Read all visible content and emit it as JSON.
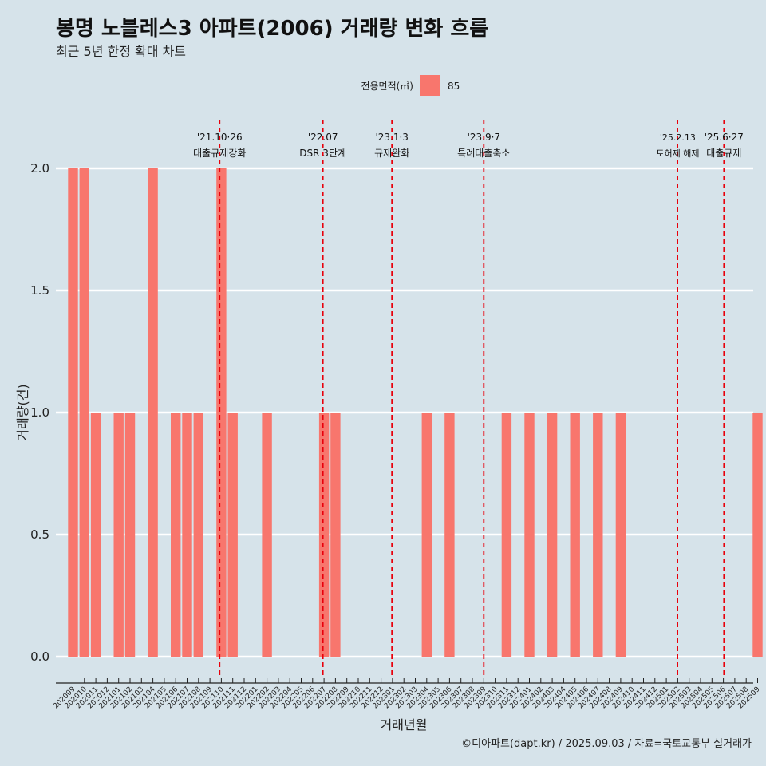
{
  "chart_data": {
    "type": "bar",
    "title": "봉명 노블레스3 아파트(2006) 거래량 변화 흐름",
    "subtitle": "최근 5년 한정 확대 차트",
    "legend_title": "전용면적(㎡)",
    "legend_items": [
      {
        "label": "85",
        "color": "#f8766d"
      }
    ],
    "xlabel": "거래년월",
    "ylabel": "거래량(건)",
    "ylim": [
      0,
      2
    ],
    "yticks": [
      {
        "value": 0,
        "label": "0.0"
      },
      {
        "value": 0.5,
        "label": "0.5"
      },
      {
        "value": 1,
        "label": "1.0"
      },
      {
        "value": 1.5,
        "label": "1.5"
      },
      {
        "value": 2,
        "label": "2.0"
      }
    ],
    "categories": [
      "202009",
      "202010",
      "202011",
      "202012",
      "202101",
      "202102",
      "202103",
      "202104",
      "202105",
      "202106",
      "202107",
      "202108",
      "202109",
      "202110",
      "202111",
      "202112",
      "202201",
      "202202",
      "202203",
      "202204",
      "202205",
      "202206",
      "202207",
      "202208",
      "202209",
      "202210",
      "202211",
      "202212",
      "202301",
      "202302",
      "202303",
      "202304",
      "202305",
      "202306",
      "202307",
      "202308",
      "202309",
      "202310",
      "202311",
      "202312",
      "202401",
      "202402",
      "202403",
      "202404",
      "202405",
      "202406",
      "202407",
      "202408",
      "202409",
      "202410",
      "202411",
      "202412",
      "202501",
      "202502",
      "202503",
      "202504",
      "202505",
      "202506",
      "202507",
      "202508",
      "202509"
    ],
    "series": [
      {
        "name": "85",
        "color": "#f8766d",
        "values": [
          2,
          2,
          1,
          0,
          1,
          1,
          0,
          2,
          0,
          1,
          1,
          1,
          0,
          2,
          1,
          0,
          0,
          1,
          0,
          0,
          0,
          0,
          1,
          1,
          0,
          0,
          0,
          0,
          0,
          0,
          0,
          1,
          0,
          1,
          0,
          0,
          0,
          0,
          1,
          0,
          1,
          0,
          1,
          0,
          1,
          0,
          1,
          0,
          1,
          0,
          0,
          0,
          0,
          0,
          0,
          0,
          0,
          0,
          0,
          0,
          1
        ]
      }
    ],
    "events": [
      {
        "date": "'21.10·26",
        "label": "대출규제강화",
        "x_index": 12.85,
        "style": "normal"
      },
      {
        "date": "'22.07",
        "label": "DSR 3단계",
        "x_index": 21.9,
        "style": "normal"
      },
      {
        "date": "'23.1·3",
        "label": "규제완화",
        "x_index": 27.95,
        "style": "normal"
      },
      {
        "date": "'23.9·7",
        "label": "특례대출축소",
        "x_index": 36.0,
        "style": "normal"
      },
      {
        "date": "'25.2.13",
        "label": "토허제 해제",
        "x_index": 53.0,
        "style": "small"
      },
      {
        "date": "'25.6·27",
        "label": "대출규제",
        "x_index": 57.05,
        "style": "normal"
      }
    ],
    "caption": "©디아파트(dapt.kr) / 2025.09.03 / 자료=국토교통부 실거래가",
    "colors": {
      "background": "#d6e3ea",
      "bar": "#f8766d",
      "event_line": "#e8000b",
      "grid": "#ffffff"
    }
  }
}
